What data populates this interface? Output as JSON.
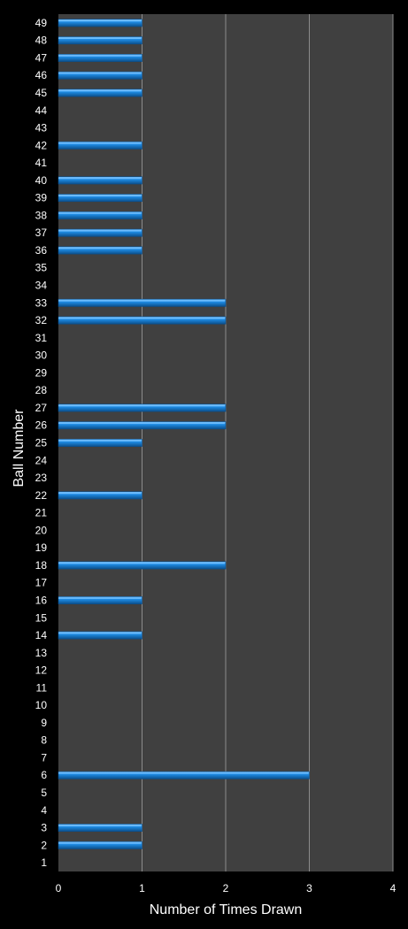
{
  "chart_data": {
    "type": "bar",
    "orientation": "horizontal",
    "xlabel": "Number of Times Drawn",
    "ylabel": "Ball Number",
    "xlim": [
      0,
      4
    ],
    "x_ticks": [
      "0",
      "1",
      "2",
      "3",
      "4"
    ],
    "grid": "vertical",
    "categories": [
      "1",
      "2",
      "3",
      "4",
      "5",
      "6",
      "7",
      "8",
      "9",
      "10",
      "11",
      "12",
      "13",
      "14",
      "15",
      "16",
      "17",
      "18",
      "19",
      "20",
      "21",
      "22",
      "23",
      "24",
      "25",
      "26",
      "27",
      "28",
      "29",
      "30",
      "31",
      "32",
      "33",
      "34",
      "35",
      "36",
      "37",
      "38",
      "39",
      "40",
      "41",
      "42",
      "43",
      "44",
      "45",
      "46",
      "47",
      "48",
      "49"
    ],
    "values": [
      0,
      1,
      1,
      0,
      0,
      3,
      0,
      0,
      0,
      0,
      0,
      0,
      0,
      1,
      0,
      1,
      0,
      2,
      0,
      0,
      0,
      1,
      0,
      0,
      1,
      2,
      2,
      0,
      0,
      0,
      0,
      2,
      2,
      0,
      0,
      1,
      1,
      1,
      1,
      1,
      0,
      1,
      0,
      0,
      1,
      1,
      1,
      1,
      1
    ],
    "colors": {
      "background": "#000000",
      "plot_area": "#404040",
      "gridline": "#8c8c8c",
      "bar": "#1f8de6",
      "bar_highlight": "#79c3ff",
      "bar_shadow": "#0b4f8c",
      "text": "#ffffff"
    }
  }
}
